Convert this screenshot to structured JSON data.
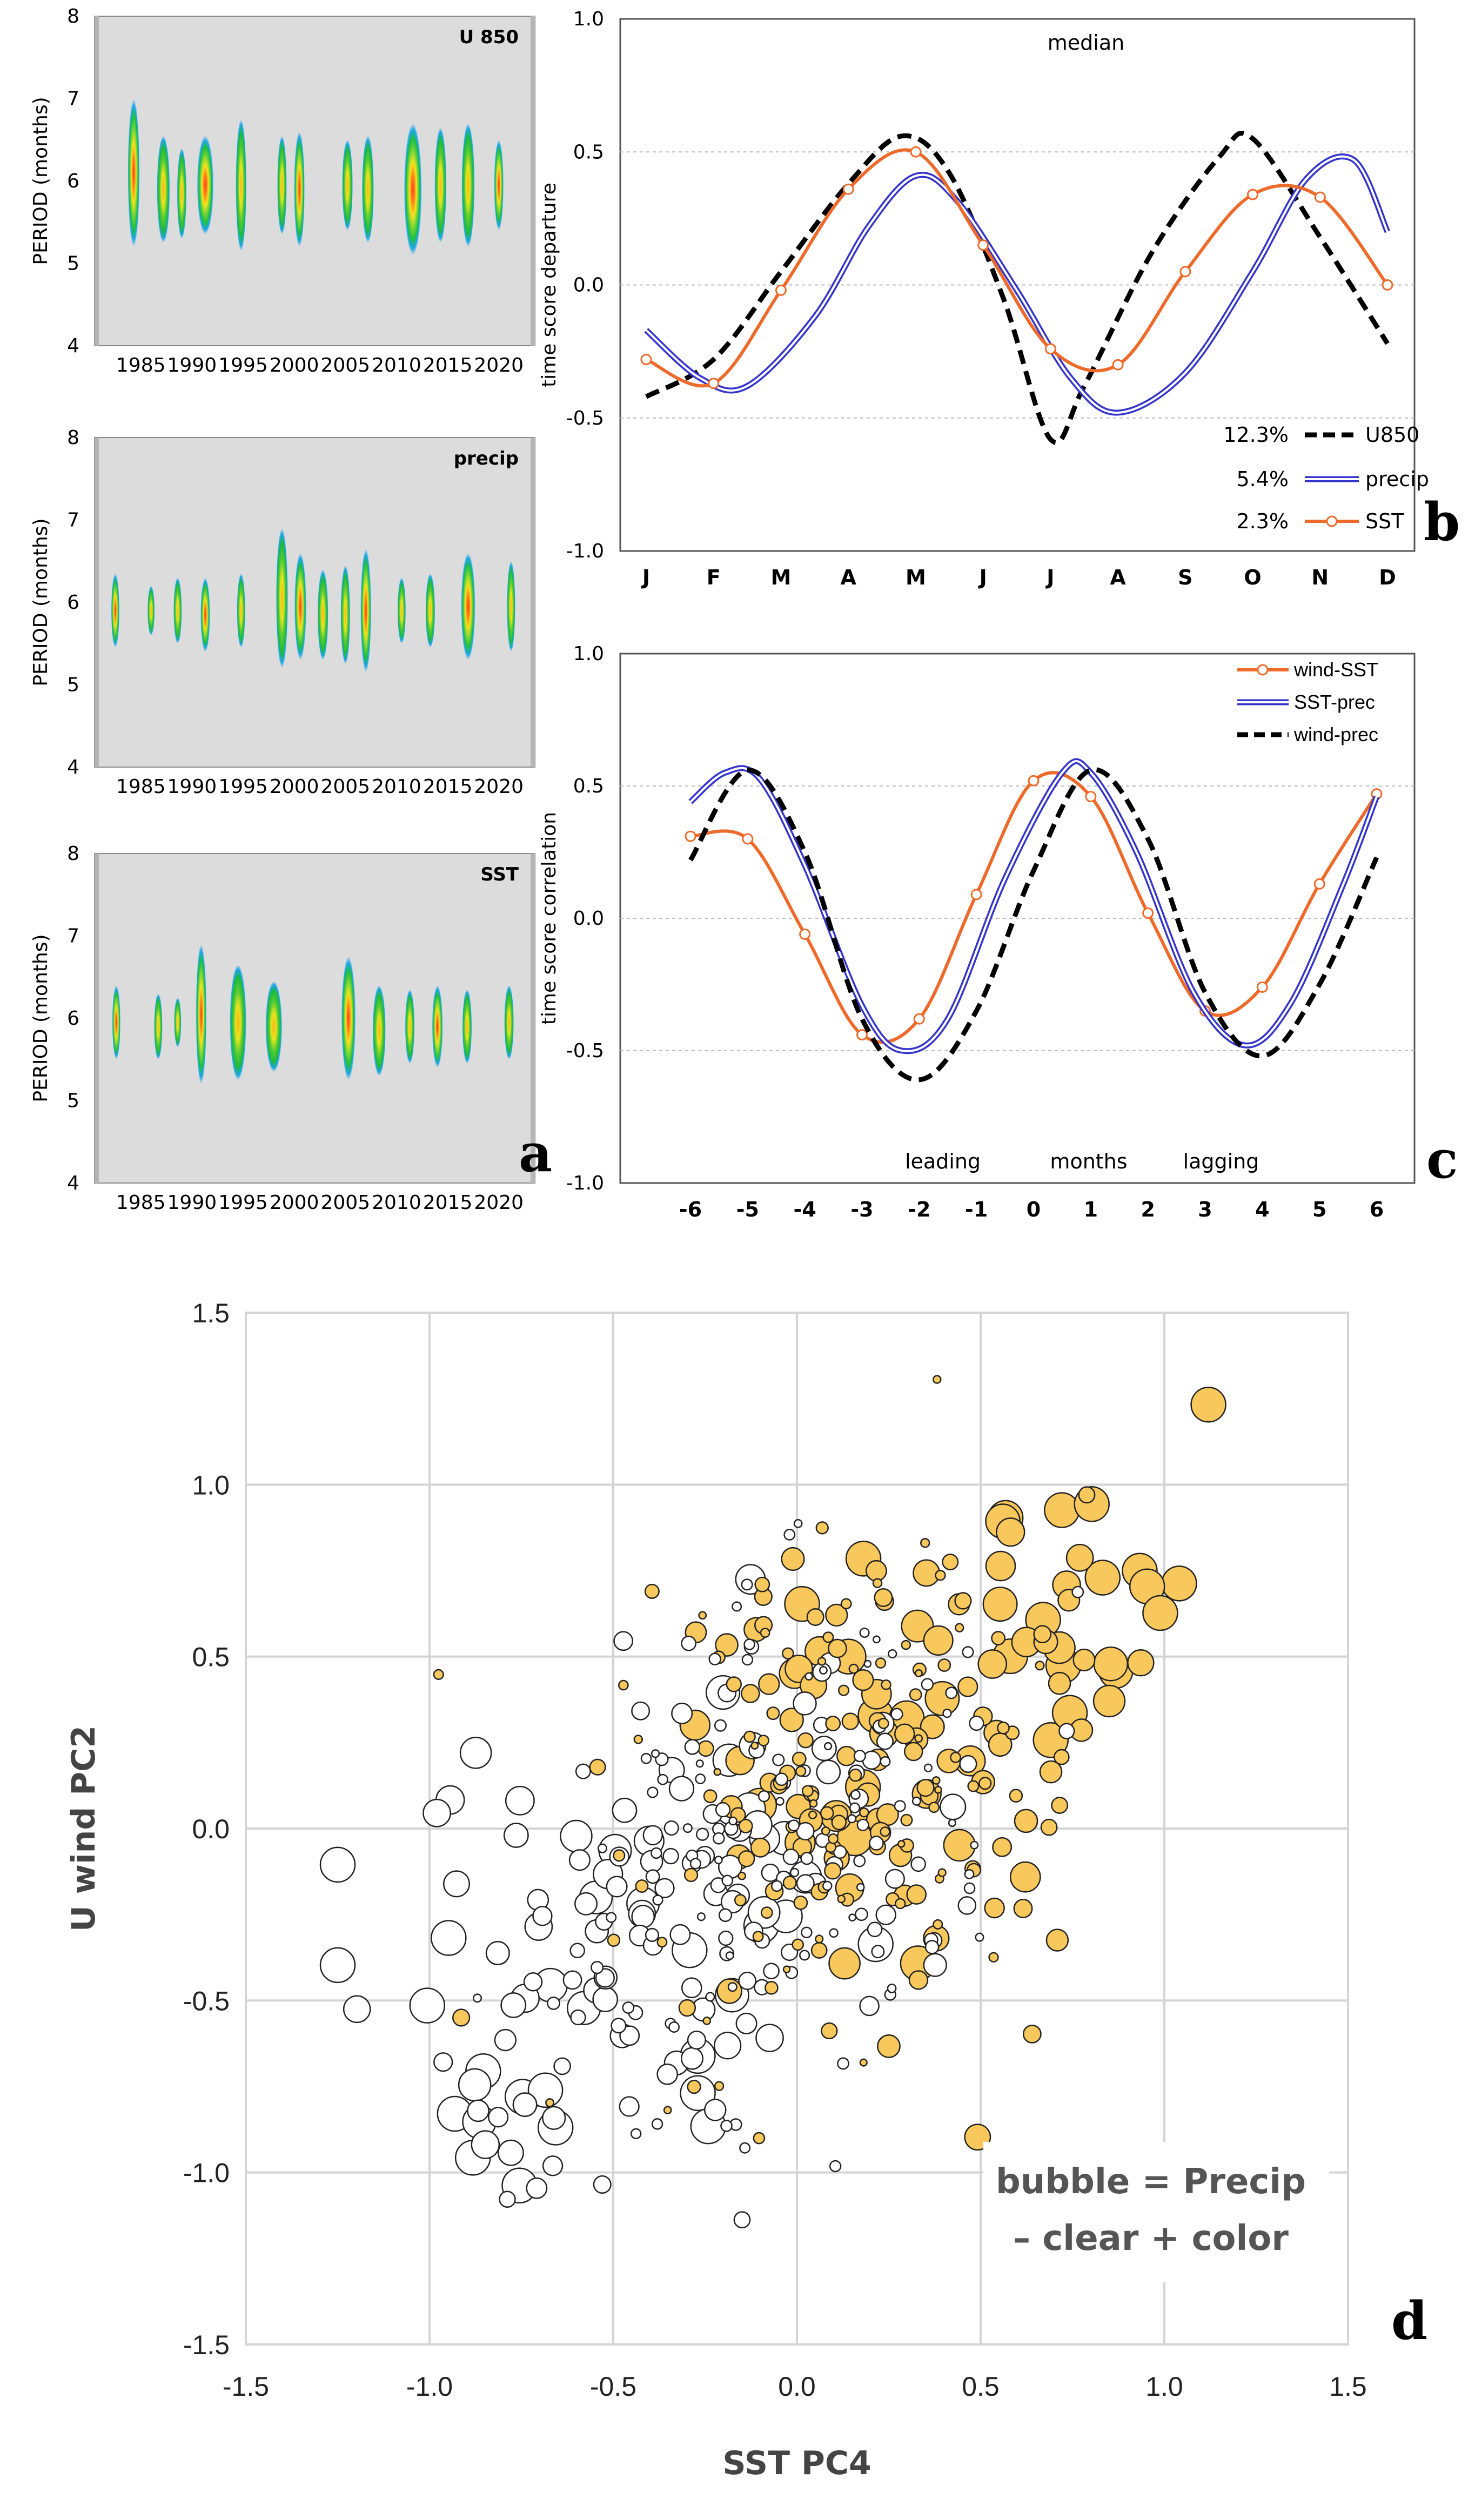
{
  "panel_labels": {
    "a": "a",
    "b": "b",
    "c": "c",
    "d": "d"
  },
  "chart_data": [
    {
      "id": "a",
      "type": "heatmap",
      "subpanels": [
        {
          "title": "U 850",
          "ylabel": "PERIOD (months)",
          "yticks": [
            "4",
            "5",
            "6",
            "7",
            "8"
          ],
          "xticks": [
            "1985",
            "1990",
            "1995",
            "2000",
            "2005",
            "2010",
            "2015",
            "2020"
          ],
          "blobs": [
            [
              1984.3,
              6.1,
              0.5,
              0.9
            ],
            [
              1987.2,
              5.9,
              0.55,
              0.65
            ],
            [
              1989.0,
              5.85,
              0.4,
              0.55
            ],
            [
              1991.3,
              5.95,
              0.7,
              0.6
            ],
            [
              1994.8,
              5.95,
              0.45,
              0.8
            ],
            [
              1998.8,
              5.95,
              0.4,
              0.6
            ],
            [
              2000.5,
              5.9,
              0.45,
              0.7
            ],
            [
              2005.2,
              5.95,
              0.45,
              0.55
            ],
            [
              2007.2,
              5.9,
              0.5,
              0.65
            ],
            [
              2011.6,
              5.9,
              0.75,
              0.8
            ],
            [
              2014.3,
              5.95,
              0.5,
              0.7
            ],
            [
              2017.0,
              5.95,
              0.55,
              0.75
            ],
            [
              2020.0,
              5.95,
              0.4,
              0.55
            ]
          ]
        },
        {
          "title": "precip",
          "ylabel": "PERIOD (months)",
          "yticks": [
            "4",
            "5",
            "6",
            "7",
            "8"
          ],
          "xticks": [
            "1985",
            "1990",
            "1995",
            "2000",
            "2005",
            "2010",
            "2015",
            "2020"
          ],
          "blobs": [
            [
              1982.5,
              5.9,
              0.35,
              0.45
            ],
            [
              1986.0,
              5.9,
              0.3,
              0.3
            ],
            [
              1988.6,
              5.9,
              0.35,
              0.4
            ],
            [
              1991.3,
              5.85,
              0.4,
              0.45
            ],
            [
              1994.8,
              5.9,
              0.35,
              0.45
            ],
            [
              1998.8,
              6.05,
              0.5,
              0.85
            ],
            [
              2000.6,
              5.95,
              0.5,
              0.65
            ],
            [
              2002.8,
              5.85,
              0.45,
              0.55
            ],
            [
              2005.0,
              5.85,
              0.4,
              0.6
            ],
            [
              2007.0,
              5.9,
              0.45,
              0.75
            ],
            [
              2010.5,
              5.9,
              0.35,
              0.4
            ],
            [
              2013.3,
              5.9,
              0.4,
              0.45
            ],
            [
              2017.0,
              5.95,
              0.6,
              0.65
            ],
            [
              2021.2,
              5.95,
              0.35,
              0.55
            ]
          ]
        },
        {
          "title": "SST",
          "ylabel": "PERIOD (months)",
          "yticks": [
            "4",
            "5",
            "6",
            "7",
            "8"
          ],
          "xticks": [
            "1985",
            "1990",
            "1995",
            "2000",
            "2005",
            "2010",
            "2015",
            "2020"
          ],
          "blobs": [
            [
              1982.6,
              5.95,
              0.35,
              0.45
            ],
            [
              1986.7,
              5.9,
              0.35,
              0.4
            ],
            [
              1988.6,
              5.95,
              0.3,
              0.3
            ],
            [
              1990.9,
              6.05,
              0.45,
              0.85
            ],
            [
              1994.5,
              5.95,
              0.7,
              0.7
            ],
            [
              1998.0,
              5.9,
              0.7,
              0.55
            ],
            [
              2005.3,
              6.0,
              0.6,
              0.75
            ],
            [
              2008.3,
              5.85,
              0.55,
              0.55
            ],
            [
              2011.3,
              5.9,
              0.4,
              0.45
            ],
            [
              2014.0,
              5.9,
              0.45,
              0.5
            ],
            [
              2016.9,
              5.9,
              0.4,
              0.45
            ],
            [
              2021.0,
              5.95,
              0.4,
              0.45
            ]
          ]
        }
      ]
    },
    {
      "id": "b",
      "type": "line",
      "title": "median",
      "ylabel": "time score departure",
      "categories": [
        "J",
        "F",
        "M",
        "A",
        "M",
        "J",
        "J",
        "A",
        "S",
        "O",
        "N",
        "D"
      ],
      "ylim": [
        -1.0,
        1.0
      ],
      "yticks": [
        "1.0",
        "0.5",
        "0.0",
        "-0.5",
        "-1.0"
      ],
      "series": [
        {
          "name": "U850",
          "pct": "12.3%",
          "color": "#000000",
          "style": "dashed",
          "x": [
            0,
            1,
            2,
            3,
            3.8,
            4.5,
            5.3,
            6.0,
            6.5,
            7.5,
            8.5,
            9.0,
            10.0,
            11.0
          ],
          "values": [
            -0.42,
            -0.28,
            0.05,
            0.38,
            0.56,
            0.42,
            -0.05,
            -0.58,
            -0.38,
            0.12,
            0.48,
            0.55,
            0.18,
            -0.22
          ]
        },
        {
          "name": "precip",
          "pct": "5.4%",
          "color": "#3333cc",
          "style": "double",
          "x": [
            0,
            0.8,
            1.5,
            2.5,
            3.3,
            4.0,
            4.6,
            5.5,
            6.3,
            7.0,
            8.0,
            9.0,
            9.8,
            10.5,
            11.0
          ],
          "values": [
            -0.17,
            -0.35,
            -0.38,
            -0.12,
            0.22,
            0.41,
            0.32,
            -0.02,
            -0.35,
            -0.48,
            -0.33,
            0.05,
            0.4,
            0.47,
            0.2
          ]
        },
        {
          "name": "SST",
          "pct": "2.3%",
          "color": "#ee6a2a",
          "style": "solid-marker",
          "x": [
            0,
            1,
            2,
            3,
            4,
            5,
            6,
            7,
            8,
            9,
            10,
            11
          ],
          "values": [
            -0.28,
            -0.37,
            -0.02,
            0.36,
            0.5,
            0.15,
            -0.24,
            -0.3,
            0.05,
            0.34,
            0.33,
            0.0
          ]
        }
      ]
    },
    {
      "id": "c",
      "type": "line",
      "ylabel": "time score correlation",
      "annotation": [
        "leading",
        "months",
        "lagging"
      ],
      "categories": [
        "-6",
        "-5",
        "-4",
        "-3",
        "-2",
        "-1",
        "0",
        "1",
        "2",
        "3",
        "4",
        "5",
        "6"
      ],
      "ylim": [
        -1.0,
        1.0
      ],
      "yticks": [
        "1.0",
        "0.5",
        "0.0",
        "-0.5",
        "-1.0"
      ],
      "series": [
        {
          "name": "wind-SST",
          "color": "#ee6a2a",
          "style": "solid-marker",
          "x": [
            -6,
            -5,
            -4,
            -3,
            -2,
            -1,
            0,
            1,
            2,
            3,
            4,
            5,
            6
          ],
          "values": [
            0.31,
            0.3,
            -0.06,
            -0.44,
            -0.38,
            0.09,
            0.52,
            0.46,
            0.02,
            -0.35,
            -0.26,
            0.13,
            0.47
          ]
        },
        {
          "name": "SST-prec",
          "color": "#3333cc",
          "style": "double",
          "x": [
            -6,
            -5.4,
            -4.8,
            -4,
            -3,
            -2.3,
            -1.5,
            -0.5,
            0.5,
            1.0,
            1.8,
            2.8,
            3.7,
            4.5,
            5.4,
            6
          ],
          "values": [
            0.44,
            0.55,
            0.53,
            0.2,
            -0.33,
            -0.5,
            -0.38,
            0.15,
            0.55,
            0.55,
            0.25,
            -0.28,
            -0.48,
            -0.32,
            0.12,
            0.46
          ]
        },
        {
          "name": "wind-prec",
          "color": "#000000",
          "style": "dashed",
          "x": [
            -6,
            -5,
            -4,
            -3,
            -2,
            -1,
            0,
            1,
            2,
            3,
            4,
            5,
            6
          ],
          "values": [
            0.22,
            0.56,
            0.25,
            -0.38,
            -0.61,
            -0.35,
            0.18,
            0.56,
            0.3,
            -0.28,
            -0.52,
            -0.25,
            0.23
          ]
        }
      ]
    },
    {
      "id": "d",
      "type": "scatter",
      "xlabel": "SST  PC4",
      "ylabel": "U wind  PC2",
      "xlim": [
        -1.5,
        1.5
      ],
      "ylim": [
        -1.5,
        1.5
      ],
      "xticks": [
        "-1.5",
        "-1.0",
        "-0.5",
        "0.0",
        "0.5",
        "1.0",
        "1.5"
      ],
      "yticks": [
        "1.5",
        "1.0",
        "0.5",
        "0.0",
        "-0.5",
        "-1.0",
        "-1.5"
      ],
      "note": [
        "bubble = Precip",
        "– clear   + color"
      ],
      "colors": {
        "positive": "#f9c85c",
        "negative": "#ffffff",
        "edge": "#222222"
      },
      "points_seed": 20250101,
      "n_points": 520
    }
  ]
}
